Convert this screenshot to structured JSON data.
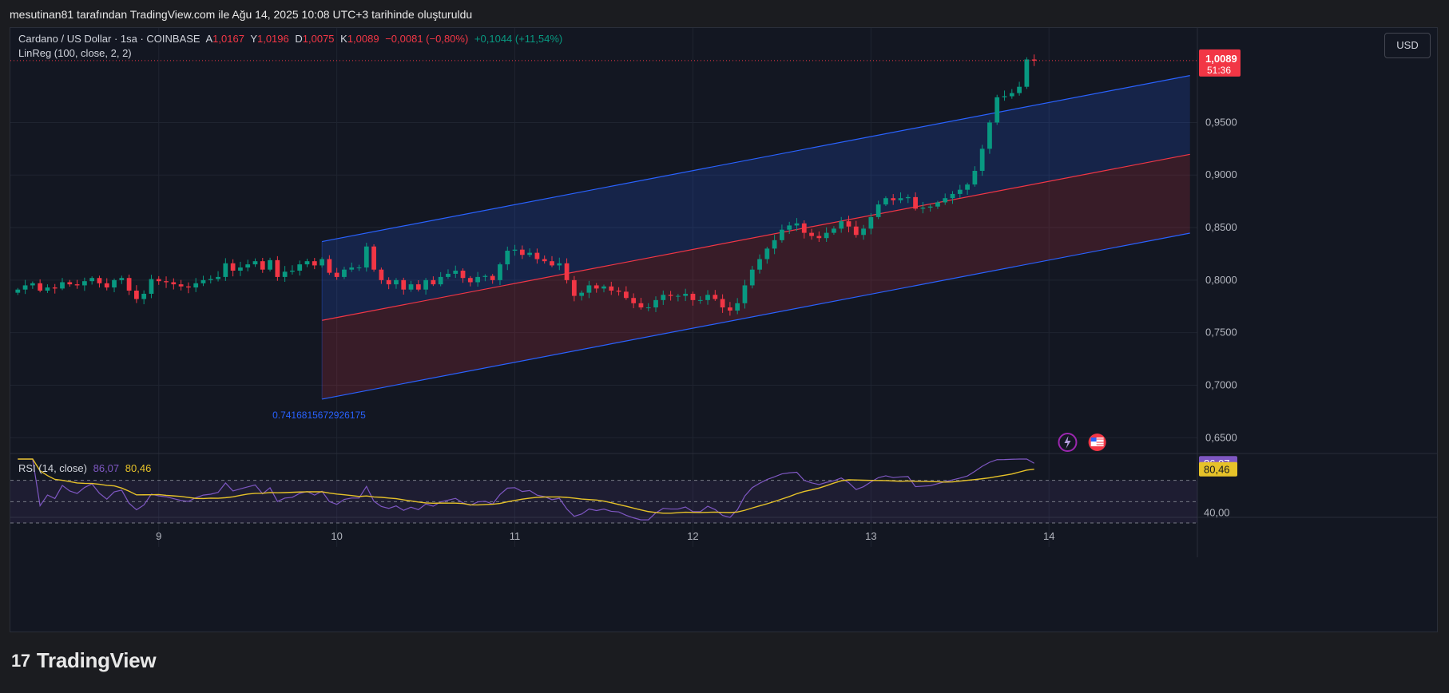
{
  "caption": "mesutinan81 tarafından TradingView.com ile Ağu 14, 2025 10:08 UTC+3 tarihinde oluşturuldu",
  "legend": {
    "symbol": "Cardano / US Dollar · 1sa · COINBASE",
    "open_label": "A",
    "open": "1,0167",
    "high_label": "Y",
    "high": "1,0196",
    "low_label": "D",
    "low": "1,0075",
    "close_label": "K",
    "close": "1,0089",
    "change": "−0,0081 (−0,80%)",
    "change_period": "+0,1044 (+11,54%)",
    "indicator": "LinReg (100, close, 2, 2)"
  },
  "rsi_legend": {
    "label": "RSI (14, close)",
    "value1": "86,07",
    "value2": "80,46"
  },
  "currency_button": "USD",
  "brand": {
    "logo": "17",
    "name": "TradingView"
  },
  "chart_data": {
    "type": "candlestick",
    "y_ticks": [
      "0,9500",
      "0,9000",
      "0,8500",
      "0,8000",
      "0,7500",
      "0,7000",
      "0,6500"
    ],
    "y_tick_values": [
      0.95,
      0.9,
      0.85,
      0.8,
      0.75,
      0.7,
      0.65
    ],
    "ylim": [
      0.635,
      1.04
    ],
    "x_ticks": [
      "9",
      "10",
      "11",
      "12",
      "13",
      "14"
    ],
    "x_tick_values": [
      8,
      32,
      56,
      80,
      104,
      128
    ],
    "xlim": [
      -12,
      148
    ],
    "last_price_label": "1,0089",
    "countdown_label": "51:36",
    "last_price": 1.0089,
    "channel_annotation": "0.7416815672926175",
    "channel": {
      "x0": 30,
      "x1": 147,
      "mid0": 0.7617,
      "mid1": 0.9197,
      "upper0": 0.8367,
      "upper1": 0.9947,
      "lower0": 0.6867,
      "lower1": 0.8447
    },
    "candle_anchor": {
      "x0": -11,
      "dx": 1
    },
    "closes": [
      0.791,
      0.795,
      0.797,
      0.79,
      0.793,
      0.792,
      0.798,
      0.796,
      0.795,
      0.799,
      0.802,
      0.797,
      0.793,
      0.8,
      0.802,
      0.79,
      0.782,
      0.787,
      0.801,
      0.799,
      0.798,
      0.796,
      0.794,
      0.793,
      0.797,
      0.8,
      0.801,
      0.803,
      0.816,
      0.809,
      0.812,
      0.815,
      0.818,
      0.81,
      0.819,
      0.803,
      0.808,
      0.809,
      0.815,
      0.818,
      0.814,
      0.82,
      0.807,
      0.803,
      0.81,
      0.812,
      0.812,
      0.832,
      0.81,
      0.8,
      0.796,
      0.8,
      0.791,
      0.796,
      0.791,
      0.8,
      0.796,
      0.803,
      0.806,
      0.809,
      0.802,
      0.798,
      0.803,
      0.804,
      0.8,
      0.815,
      0.828,
      0.829,
      0.824,
      0.826,
      0.82,
      0.818,
      0.814,
      0.816,
      0.8,
      0.785,
      0.788,
      0.795,
      0.792,
      0.794,
      0.79,
      0.789,
      0.783,
      0.778,
      0.774,
      0.774,
      0.781,
      0.786,
      0.785,
      0.785,
      0.787,
      0.781,
      0.781,
      0.786,
      0.782,
      0.774,
      0.771,
      0.778,
      0.795,
      0.81,
      0.82,
      0.83,
      0.838,
      0.848,
      0.852,
      0.854,
      0.845,
      0.842,
      0.84,
      0.845,
      0.849,
      0.856,
      0.851,
      0.843,
      0.849,
      0.86,
      0.872,
      0.878,
      0.876,
      0.878,
      0.879,
      0.868,
      0.869,
      0.87,
      0.874,
      0.878,
      0.882,
      0.886,
      0.891,
      0.904,
      0.925,
      0.95,
      0.974,
      0.975,
      0.978,
      0.984,
      1.01,
      1.0089
    ],
    "rsi": {
      "value": 86.07,
      "ma": 80.46,
      "ylim": [
        30,
        90
      ],
      "bands": [
        70,
        50,
        30
      ],
      "tick_label": "40,00",
      "tick_value": 40
    }
  }
}
